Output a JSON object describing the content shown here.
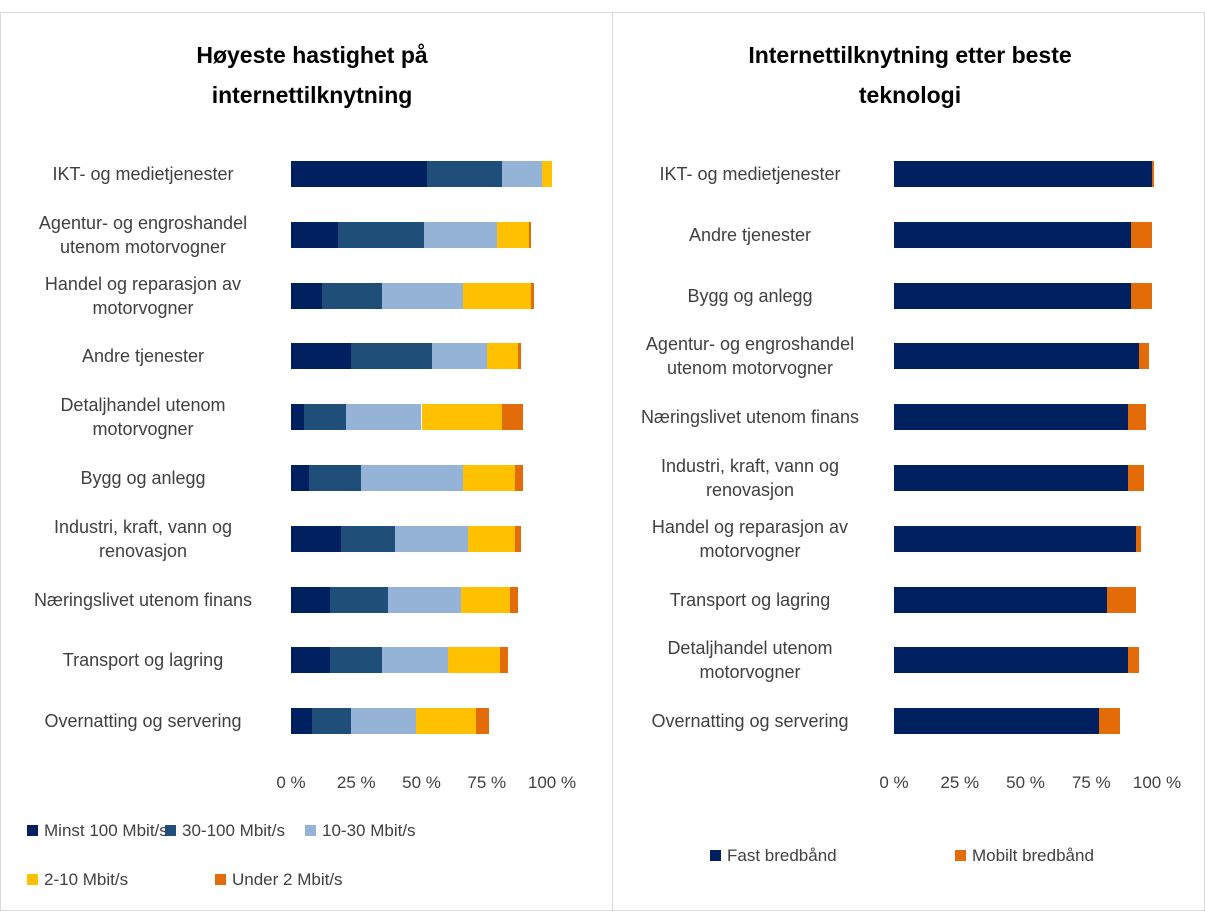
{
  "chart_data": [
    {
      "type": "bar",
      "orientation": "horizontal",
      "stacked": true,
      "title": "Høyeste hastighet på internettilknytning",
      "categories": [
        "IKT- og medietjenester",
        "Agentur- og engroshandel utenom motorvogner",
        "Handel og reparasjon av motorvogner",
        "Andre tjenester",
        "Detaljhandel utenom motorvogner",
        "Bygg og anlegg",
        "Industri, kraft, vann og renovasjon",
        "Næringslivet utenom finans",
        "Transport og lagring",
        "Overnatting og servering"
      ],
      "series": [
        {
          "name": "Minst 100 Mbit/s",
          "color": "#002060",
          "values": [
            52,
            18,
            12,
            23,
            5,
            7,
            19,
            15,
            15,
            8
          ]
        },
        {
          "name": "30-100 Mbit/s",
          "color": "#1f4e79",
          "values": [
            29,
            33,
            23,
            31,
            16,
            20,
            21,
            22,
            20,
            15
          ]
        },
        {
          "name": "10-30 Mbit/s",
          "color": "#95b3d7",
          "values": [
            15,
            28,
            31,
            21,
            29,
            39,
            28,
            28,
            25,
            25
          ]
        },
        {
          "name": "2-10 Mbit/s",
          "color": "#ffc000",
          "values": [
            4,
            12,
            26,
            12,
            31,
            20,
            18,
            19,
            20,
            23
          ]
        },
        {
          "name": "Under 2 Mbit/s",
          "color": "#e36c09",
          "values": [
            0,
            1,
            1,
            1,
            8,
            3,
            2,
            3,
            3,
            5
          ]
        }
      ],
      "xlim": [
        0,
        100
      ],
      "xticks": [
        {
          "value": 0,
          "label": "0 %"
        },
        {
          "value": 25,
          "label": "25 %"
        },
        {
          "value": 50,
          "label": "50 %"
        },
        {
          "value": 75,
          "label": "75 %"
        },
        {
          "value": 100,
          "label": "100 %"
        }
      ]
    },
    {
      "type": "bar",
      "orientation": "horizontal",
      "stacked": true,
      "title": "Internettilknytning etter beste teknologi",
      "categories": [
        "IKT- og medietjenester",
        "Andre tjenester",
        "Bygg og anlegg",
        "Agentur- og engroshandel utenom motorvogner",
        "Næringslivet utenom finans",
        "Industri, kraft, vann og renovasjon",
        "Handel og reparasjon av motorvogner",
        "Transport og lagring",
        "Detaljhandel utenom motorvogner",
        "Overnatting og servering"
      ],
      "series": [
        {
          "name": "Fast bredbånd",
          "color": "#002060",
          "values": [
            98,
            90,
            90,
            93,
            89,
            89,
            92,
            81,
            89,
            78
          ]
        },
        {
          "name": "Mobilt bredbånd",
          "color": "#e36c09",
          "values": [
            1,
            8,
            8,
            4,
            7,
            6,
            2,
            11,
            4,
            8
          ]
        }
      ],
      "xlim": [
        0,
        100
      ],
      "xticks": [
        {
          "value": 0,
          "label": "0 %"
        },
        {
          "value": 25,
          "label": "25 %"
        },
        {
          "value": 50,
          "label": "50 %"
        },
        {
          "value": 75,
          "label": "75 %"
        },
        {
          "value": 100,
          "label": "100 %"
        }
      ]
    }
  ]
}
